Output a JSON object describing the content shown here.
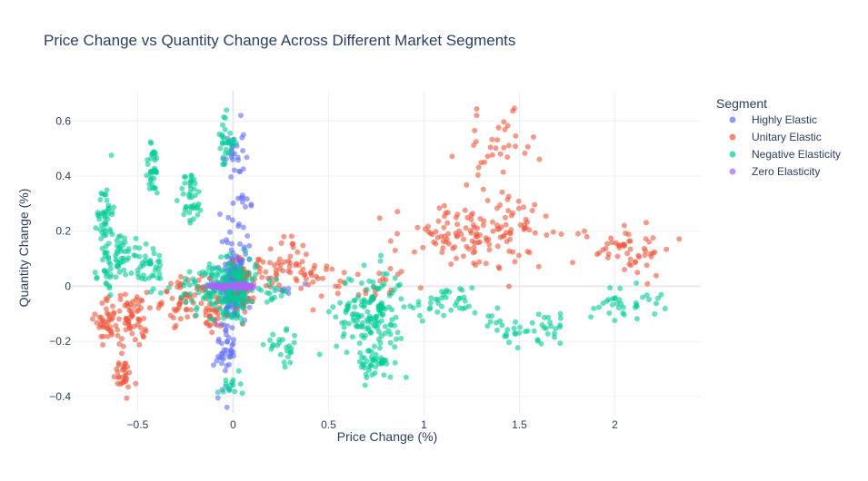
{
  "chart_data": {
    "type": "scatter",
    "title": "Price Change vs Quantity Change Across Different Market Segments",
    "xlabel": "Price Change (%)",
    "ylabel": "Quantity Change (%)",
    "xlim": [
      -0.84,
      2.45
    ],
    "ylim": [
      -0.46,
      0.71
    ],
    "x_ticks": [
      -0.5,
      0,
      0.5,
      1,
      1.5,
      2
    ],
    "x_tick_labels": [
      "−0.5",
      "0",
      "0.5",
      "1",
      "1.5",
      "2"
    ],
    "y_ticks": [
      -0.4,
      -0.2,
      0,
      0.2,
      0.4,
      0.6
    ],
    "y_tick_labels": [
      "−0.4",
      "−0.2",
      "0",
      "0.2",
      "0.4",
      "0.6"
    ],
    "grid": true,
    "legend": {
      "title": "Segment",
      "placement": "top-right"
    },
    "series": [
      {
        "name": "Highly Elastic",
        "color": "#636efa",
        "clusters": [
          {
            "cx": 0.0,
            "cy": 0.0,
            "sx": 0.03,
            "sy": 0.06,
            "n": 140
          },
          {
            "cx": 0.03,
            "cy": 0.12,
            "sx": 0.04,
            "sy": 0.14,
            "n": 60
          },
          {
            "cx": -0.04,
            "cy": -0.22,
            "sx": 0.025,
            "sy": 0.08,
            "n": 50
          },
          {
            "cx": 0.0,
            "cy": 0.48,
            "sx": 0.03,
            "sy": 0.06,
            "n": 25
          },
          {
            "cx": 0.35,
            "cy": -0.01,
            "sx": 0.05,
            "sy": 0.02,
            "n": 6
          }
        ]
      },
      {
        "name": "Unitary Elastic",
        "color": "#ef553b",
        "clusters": [
          {
            "cx": -0.66,
            "cy": -0.12,
            "sx": 0.03,
            "sy": 0.04,
            "n": 40
          },
          {
            "cx": -0.53,
            "cy": -0.12,
            "sx": 0.04,
            "sy": 0.05,
            "n": 60
          },
          {
            "cx": -0.58,
            "cy": -0.32,
            "sx": 0.025,
            "sy": 0.03,
            "n": 30
          },
          {
            "cx": -0.25,
            "cy": -0.05,
            "sx": 0.06,
            "sy": 0.04,
            "n": 55
          },
          {
            "cx": -0.1,
            "cy": -0.1,
            "sx": 0.04,
            "sy": 0.04,
            "n": 30
          },
          {
            "cx": 0.05,
            "cy": 0.0,
            "sx": 0.03,
            "sy": 0.05,
            "n": 60
          },
          {
            "cx": 0.25,
            "cy": 0.08,
            "sx": 0.08,
            "sy": 0.05,
            "n": 55
          },
          {
            "cx": 0.45,
            "cy": 0.03,
            "sx": 0.06,
            "sy": 0.03,
            "n": 20
          },
          {
            "cx": 0.75,
            "cy": 0.0,
            "sx": 0.08,
            "sy": 0.03,
            "n": 20
          },
          {
            "cx": 1.2,
            "cy": 0.18,
            "sx": 0.18,
            "sy": 0.06,
            "n": 110
          },
          {
            "cx": 1.38,
            "cy": 0.5,
            "sx": 0.1,
            "sy": 0.06,
            "n": 35
          },
          {
            "cx": 1.5,
            "cy": 0.2,
            "sx": 0.08,
            "sy": 0.08,
            "n": 30
          },
          {
            "cx": 2.05,
            "cy": 0.14,
            "sx": 0.13,
            "sy": 0.05,
            "n": 55
          }
        ]
      },
      {
        "name": "Negative Elasticity",
        "color": "#00cc96",
        "clusters": [
          {
            "cx": -0.67,
            "cy": 0.27,
            "sx": 0.02,
            "sy": 0.06,
            "n": 40
          },
          {
            "cx": -0.6,
            "cy": 0.12,
            "sx": 0.04,
            "sy": 0.04,
            "n": 40
          },
          {
            "cx": -0.66,
            "cy": 0.04,
            "sx": 0.02,
            "sy": 0.04,
            "n": 20
          },
          {
            "cx": -0.45,
            "cy": 0.07,
            "sx": 0.05,
            "sy": 0.05,
            "n": 45
          },
          {
            "cx": -0.42,
            "cy": 0.42,
            "sx": 0.02,
            "sy": 0.05,
            "n": 35
          },
          {
            "cx": -0.22,
            "cy": 0.32,
            "sx": 0.03,
            "sy": 0.05,
            "n": 40
          },
          {
            "cx": -0.15,
            "cy": 0.0,
            "sx": 0.07,
            "sy": 0.04,
            "n": 40
          },
          {
            "cx": 0.0,
            "cy": 0.0,
            "sx": 0.06,
            "sy": 0.05,
            "n": 180
          },
          {
            "cx": -0.04,
            "cy": 0.52,
            "sx": 0.025,
            "sy": 0.05,
            "n": 30
          },
          {
            "cx": -0.02,
            "cy": -0.35,
            "sx": 0.03,
            "sy": 0.03,
            "n": 15
          },
          {
            "cx": 0.27,
            "cy": -0.23,
            "sx": 0.05,
            "sy": 0.03,
            "n": 25
          },
          {
            "cx": 0.2,
            "cy": -0.01,
            "sx": 0.05,
            "sy": 0.02,
            "n": 15
          },
          {
            "cx": 0.72,
            "cy": -0.1,
            "sx": 0.09,
            "sy": 0.08,
            "n": 150
          },
          {
            "cx": 0.75,
            "cy": -0.28,
            "sx": 0.05,
            "sy": 0.03,
            "n": 40
          },
          {
            "cx": 1.12,
            "cy": -0.06,
            "sx": 0.08,
            "sy": 0.03,
            "n": 35
          },
          {
            "cx": 1.45,
            "cy": -0.15,
            "sx": 0.07,
            "sy": 0.03,
            "n": 25
          },
          {
            "cx": 1.65,
            "cy": -0.15,
            "sx": 0.05,
            "sy": 0.03,
            "n": 20
          },
          {
            "cx": 2.05,
            "cy": -0.06,
            "sx": 0.1,
            "sy": 0.03,
            "n": 35
          }
        ]
      },
      {
        "name": "Zero Elasticity",
        "color": "#ab63fa",
        "clusters": [
          {
            "cx": -0.08,
            "cy": 0.0,
            "sx": 0.02,
            "sy": 0.004,
            "n": 40
          },
          {
            "cx": 0.05,
            "cy": 0.0,
            "sx": 0.03,
            "sy": 0.004,
            "n": 50
          },
          {
            "cx": 0.0,
            "cy": 0.0,
            "sx": 0.05,
            "sy": 0.003,
            "n": 45
          }
        ]
      }
    ]
  }
}
